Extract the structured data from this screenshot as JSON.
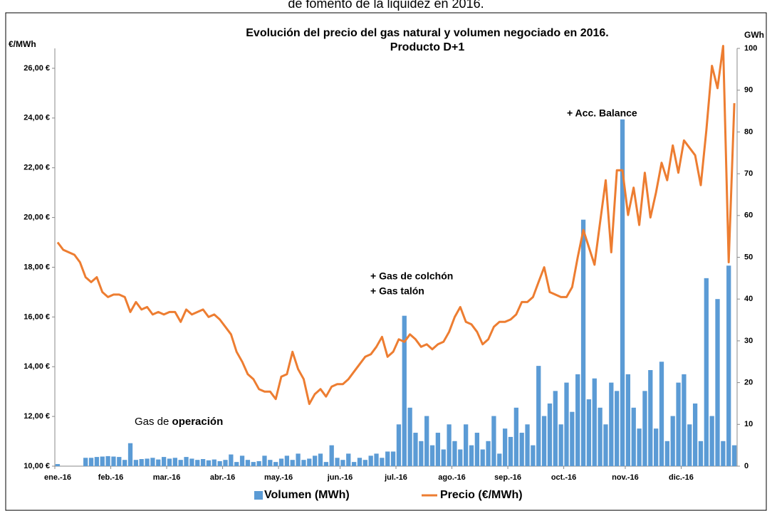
{
  "caption": "de fomento de la liquidez en 2016.",
  "chart_data": {
    "type": "bar-line",
    "title": [
      "Evolución del precio del gas natural y volumen negociado en 2016.",
      "Producto D+1"
    ],
    "ylabel": "€/MWh",
    "y2label": "GWh",
    "annotations": [
      {
        "text": "+ Acc. Balance"
      },
      {
        "text": "+ Gas de colchón"
      },
      {
        "text": "+ Gas talón"
      },
      {
        "text": "Gas de",
        "bold": "operación"
      }
    ],
    "categories": [
      "ene.-16",
      null,
      null,
      null,
      null,
      null,
      null,
      null,
      null,
      null,
      "feb.-16",
      null,
      null,
      null,
      null,
      null,
      null,
      null,
      null,
      null,
      "mar.-16",
      null,
      null,
      null,
      null,
      null,
      null,
      null,
      null,
      null,
      "abr.-16",
      null,
      null,
      null,
      null,
      null,
      null,
      null,
      null,
      null,
      "may.-16",
      null,
      null,
      null,
      null,
      null,
      null,
      null,
      null,
      null,
      null,
      "jun.-16",
      null,
      null,
      null,
      null,
      null,
      null,
      null,
      null,
      null,
      "jul.-16",
      null,
      null,
      null,
      null,
      null,
      null,
      null,
      null,
      null,
      "ago.-16",
      null,
      null,
      null,
      null,
      null,
      null,
      null,
      null,
      null,
      "sep.-16",
      null,
      null,
      null,
      null,
      null,
      null,
      null,
      null,
      null,
      "oct.-16",
      null,
      null,
      null,
      null,
      null,
      null,
      null,
      null,
      null,
      null,
      "nov.-16",
      null,
      null,
      null,
      null,
      null,
      null,
      null,
      null,
      null,
      "dic.-16",
      null,
      null,
      null,
      null,
      null,
      null,
      null,
      null,
      null
    ],
    "series": [
      {
        "name": "Volumen (MWh)",
        "color": "#5b9bd5",
        "axis": "y2",
        "kind": "bar",
        "values": [
          0.5,
          0,
          0,
          0,
          0,
          2,
          2,
          2.2,
          2.3,
          2.4,
          2.3,
          2.2,
          1.5,
          5.5,
          1.5,
          1.7,
          1.8,
          2,
          1.6,
          2.2,
          1.8,
          2,
          1.5,
          2.2,
          1.8,
          1.5,
          1.7,
          1.4,
          1.6,
          1.2,
          1.5,
          2.8,
          1,
          2.5,
          1.5,
          1,
          1.2,
          2.5,
          1.5,
          1,
          1.8,
          2.5,
          1.5,
          3,
          1.5,
          1.8,
          2.5,
          3,
          1,
          5,
          2,
          1.5,
          3,
          1,
          2,
          1.5,
          2.5,
          3,
          2,
          3.5,
          3.5,
          10,
          36,
          14,
          8,
          6,
          12,
          5,
          8,
          4,
          10,
          6,
          4,
          10,
          5,
          8,
          4,
          6,
          12,
          3,
          9,
          7,
          14,
          8,
          10,
          5,
          24,
          12,
          15,
          18,
          10,
          20,
          13,
          22,
          59,
          16,
          21,
          14,
          10,
          20,
          18,
          83,
          22,
          14,
          9,
          18,
          23,
          9,
          25,
          6,
          12,
          20,
          22,
          10,
          15,
          6,
          45,
          12,
          40,
          6,
          48,
          5
        ]
      },
      {
        "name": "Precio (€/MWh)",
        "color": "#ed7d31",
        "axis": "y",
        "kind": "line",
        "values": [
          19.0,
          18.7,
          18.6,
          18.5,
          18.2,
          17.6,
          17.4,
          17.6,
          17.0,
          16.8,
          16.9,
          16.9,
          16.8,
          16.2,
          16.6,
          16.3,
          16.4,
          16.1,
          16.2,
          16.1,
          16.2,
          16.2,
          15.8,
          16.3,
          16.1,
          16.2,
          16.3,
          16.0,
          16.1,
          15.9,
          15.6,
          15.3,
          14.6,
          14.2,
          13.7,
          13.5,
          13.1,
          13.0,
          13.0,
          12.7,
          13.6,
          13.7,
          14.6,
          13.9,
          13.5,
          12.5,
          12.9,
          13.1,
          12.8,
          13.2,
          13.3,
          13.3,
          13.5,
          13.8,
          14.1,
          14.4,
          14.5,
          14.8,
          15.2,
          14.4,
          14.6,
          15.1,
          15.0,
          15.3,
          15.1,
          14.8,
          14.9,
          14.7,
          14.9,
          15.0,
          15.4,
          16.0,
          16.4,
          15.8,
          15.7,
          15.4,
          14.9,
          15.1,
          15.6,
          15.8,
          15.8,
          15.9,
          16.1,
          16.6,
          16.6,
          16.8,
          17.4,
          18.0,
          17.0,
          16.9,
          16.8,
          16.8,
          17.2,
          18.4,
          19.5,
          18.8,
          18.1,
          19.8,
          21.5,
          18.6,
          21.9,
          21.9,
          20.1,
          21.2,
          19.7,
          21.8,
          20.0,
          21.0,
          22.2,
          21.5,
          22.9,
          21.8,
          23.1,
          22.8,
          22.5,
          21.3,
          23.5,
          26.1,
          25.2,
          26.9,
          18.2,
          24.6
        ]
      }
    ],
    "ylim": [
      10,
      26.8
    ],
    "yticks": [
      {
        "value": 10,
        "label": "10,00 €"
      },
      {
        "value": 12,
        "label": "12,00 €"
      },
      {
        "value": 14,
        "label": "14,00 €"
      },
      {
        "value": 16,
        "label": "16,00 €"
      },
      {
        "value": 18,
        "label": "18,00 €"
      },
      {
        "value": 20,
        "label": "20,00 €"
      },
      {
        "value": 22,
        "label": "22,00 €"
      },
      {
        "value": 24,
        "label": "24,00 €"
      },
      {
        "value": 26,
        "label": "26,00 €"
      }
    ],
    "y2lim": [
      0,
      100
    ],
    "y2ticks": [
      0,
      10,
      20,
      30,
      40,
      50,
      60,
      70,
      80,
      90,
      100
    ],
    "grid": false,
    "legend": "bottom"
  }
}
